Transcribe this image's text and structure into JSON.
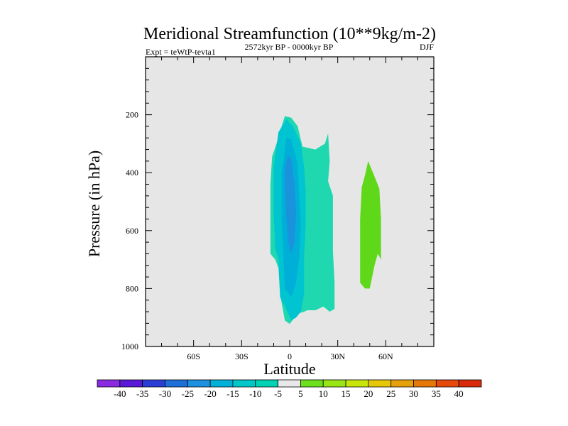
{
  "chart_data": {
    "type": "contour",
    "title": "Meridional Streamfunction (10**9kg/m-2)",
    "subtitle_left": "Expt = teWtP-tevta1",
    "subtitle_center": "2572kyr BP - 0000kyr BP",
    "subtitle_right": "DJF",
    "xlabel": "Latitude",
    "ylabel": "Pressure (in hPa)",
    "xlim": [
      -90,
      90
    ],
    "ylim": [
      0,
      1000
    ],
    "x_ticks": [
      {
        "value": -60,
        "label": "60S"
      },
      {
        "value": -30,
        "label": "30S"
      },
      {
        "value": 0,
        "label": "0"
      },
      {
        "value": 30,
        "label": "30N"
      },
      {
        "value": 60,
        "label": "60N"
      }
    ],
    "y_ticks": [
      {
        "value": 200,
        "label": "200"
      },
      {
        "value": 400,
        "label": "400"
      },
      {
        "value": 600,
        "label": "600"
      },
      {
        "value": 800,
        "label": "800"
      },
      {
        "value": 1000,
        "label": "1000"
      }
    ],
    "background_color": "#e6e6e6",
    "colorbar": {
      "labels": [
        "-40",
        "-35",
        "-30",
        "-25",
        "-20",
        "-15",
        "-10",
        "-5",
        "5",
        "10",
        "15",
        "20",
        "25",
        "30",
        "35",
        "40"
      ],
      "colors": [
        "#8a2be2",
        "#5a19d6",
        "#2a3ed6",
        "#1f6fd8",
        "#1e90e0",
        "#00b0d8",
        "#00c8c8",
        "#00d2b4",
        "#e8e8e8",
        "#6ce01a",
        "#9ae614",
        "#c8e60a",
        "#e6c80a",
        "#e6a00a",
        "#e6780a",
        "#e64a0a",
        "#d82a0a"
      ]
    },
    "regions": [
      {
        "level": "-10 to -5",
        "color": "#1fd8b0",
        "points": [
          [
            -12,
            680
          ],
          [
            -12,
            440
          ],
          [
            -11,
            345
          ],
          [
            -7,
            280
          ],
          [
            -5,
            240
          ],
          [
            -3,
            205
          ],
          [
            1,
            210
          ],
          [
            5,
            240
          ],
          [
            8,
            310
          ],
          [
            16,
            320
          ],
          [
            22,
            300
          ],
          [
            24,
            265
          ],
          [
            25,
            360
          ],
          [
            24,
            430
          ],
          [
            27,
            480
          ],
          [
            27,
            560
          ],
          [
            27,
            670
          ],
          [
            28,
            780
          ],
          [
            28,
            870
          ],
          [
            25,
            880
          ],
          [
            21,
            862
          ],
          [
            16,
            875
          ],
          [
            11,
            875
          ],
          [
            9,
            880
          ],
          [
            6,
            885
          ],
          [
            3,
            900
          ],
          [
            0,
            922
          ],
          [
            -3,
            910
          ],
          [
            -6,
            820
          ],
          [
            -7,
            730
          ],
          [
            -9,
            700
          ]
        ]
      },
      {
        "level": "-15 to -10",
        "color": "#00c4d0",
        "points": [
          [
            -6,
            830
          ],
          [
            -7,
            700
          ],
          [
            -9,
            660
          ],
          [
            -10,
            540
          ],
          [
            -10,
            380
          ],
          [
            -7,
            260
          ],
          [
            -2,
            215
          ],
          [
            2,
            240
          ],
          [
            7,
            300
          ],
          [
            9,
            380
          ],
          [
            10,
            470
          ],
          [
            10,
            580
          ],
          [
            9,
            690
          ],
          [
            9,
            820
          ],
          [
            7,
            880
          ],
          [
            4,
            900
          ],
          [
            1,
            910
          ],
          [
            -3,
            860
          ]
        ]
      },
      {
        "level": "-20 to -15",
        "color": "#00afd8",
        "points": [
          [
            -3,
            800
          ],
          [
            -4,
            680
          ],
          [
            -5,
            560
          ],
          [
            -5,
            400
          ],
          [
            -2,
            280
          ],
          [
            1,
            285
          ],
          [
            5,
            370
          ],
          [
            6,
            470
          ],
          [
            7,
            580
          ],
          [
            6,
            690
          ],
          [
            4,
            780
          ],
          [
            1,
            830
          ]
        ]
      },
      {
        "level": "-25 to -20",
        "color": "#1a93dc",
        "points": [
          [
            -3,
            460
          ],
          [
            -3,
            380
          ],
          [
            -1,
            340
          ],
          [
            1,
            355
          ],
          [
            3,
            440
          ],
          [
            4,
            540
          ],
          [
            3,
            640
          ],
          [
            1,
            680
          ],
          [
            -1,
            640
          ],
          [
            -2,
            560
          ]
        ]
      },
      {
        "level": "5 to 10",
        "color": "#60d81a",
        "points": [
          [
            44,
            780
          ],
          [
            44,
            560
          ],
          [
            45,
            450
          ],
          [
            47,
            410
          ],
          [
            49,
            360
          ],
          [
            52,
            400
          ],
          [
            56,
            455
          ],
          [
            57,
            560
          ],
          [
            57,
            700
          ],
          [
            55,
            680
          ],
          [
            53,
            720
          ],
          [
            50,
            800
          ],
          [
            47,
            800
          ]
        ]
      }
    ]
  }
}
